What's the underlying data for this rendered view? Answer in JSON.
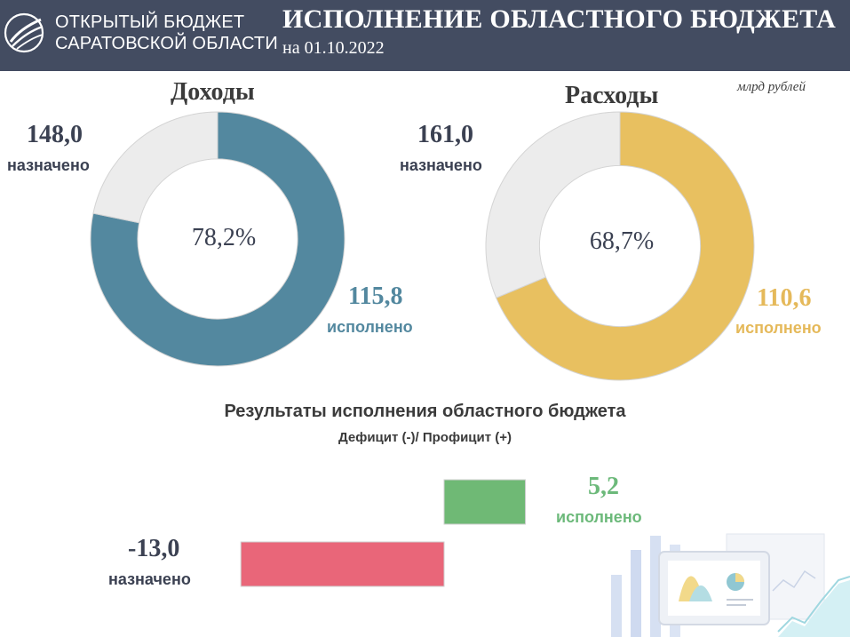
{
  "header": {
    "org_line1": "ОТКРЫТЫЙ БЮДЖЕТ",
    "org_line2": "САРАТОВСКОЙ ОБЛАСТИ",
    "title": "ИСПОЛНЕНИЕ ОБЛАСТНОГО БЮДЖЕТА",
    "date": "на 01.10.2022",
    "background_color": "#434c61"
  },
  "units": "млрд рублей",
  "income": {
    "title": "Доходы",
    "planned_value": "148,0",
    "planned_label": "назначено",
    "executed_value": "115,8",
    "executed_label": "исполнено",
    "percent_label": "78,2%"
  },
  "expenses": {
    "title": "Расходы",
    "planned_value": "161,0",
    "planned_label": "назначено",
    "executed_value": "110,6",
    "executed_label": "исполнено",
    "percent_label": "68,7%"
  },
  "result": {
    "title": "Результаты исполнения  областного бюджета",
    "subtitle": "Дефицит  (-)/ Профицит  (+)",
    "planned_value": "-13,0",
    "planned_label": "назначено",
    "executed_value": "5,2",
    "executed_label": "исполнено"
  },
  "chart_data": [
    {
      "type": "pie",
      "title": "Доходы",
      "values": [
        115.8,
        32.2
      ],
      "total": 148.0,
      "executed_percent": 78.2,
      "colors": [
        "#53889f",
        "#ececec"
      ]
    },
    {
      "type": "pie",
      "title": "Расходы",
      "values": [
        110.6,
        50.4
      ],
      "total": 161.0,
      "executed_percent": 68.7,
      "colors": [
        "#e8c060",
        "#ececec"
      ]
    },
    {
      "type": "bar",
      "categories": [
        "исполнено",
        "назначено"
      ],
      "values": [
        5.2,
        -13.0
      ],
      "colors": [
        "#6fb975",
        "#e96679"
      ]
    }
  ]
}
